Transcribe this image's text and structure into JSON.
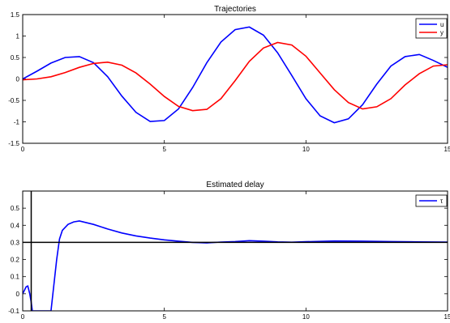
{
  "chart_data": [
    {
      "type": "line",
      "title": "Trajectories",
      "xlabel": "",
      "ylabel": "",
      "xlim": [
        0,
        15
      ],
      "ylim": [
        -1.5,
        1.5
      ],
      "xticks": [
        0,
        5,
        10,
        15
      ],
      "xtick_labels": [
        "0",
        "5",
        "10",
        "15"
      ],
      "yticks": [
        -1.5,
        -1,
        -0.5,
        0,
        0.5,
        1,
        1.5
      ],
      "ytick_labels": [
        "-1.5",
        "-1",
        "-0.5",
        "0",
        "0.5",
        "1",
        "1.5"
      ],
      "grid": false,
      "legend_position": "top-right",
      "series": [
        {
          "name": "u",
          "color": "#0000ff",
          "x": [
            0,
            0.5,
            1,
            1.5,
            2,
            2.5,
            3,
            3.5,
            4,
            4.5,
            5,
            5.5,
            6,
            6.5,
            7,
            7.5,
            8,
            8.5,
            9,
            9.5,
            10,
            10.5,
            11,
            11.5,
            12,
            12.5,
            13,
            13.5,
            14,
            14.5,
            15
          ],
          "y": [
            0.0,
            0.18,
            0.37,
            0.5,
            0.52,
            0.38,
            0.05,
            -0.4,
            -0.78,
            -0.99,
            -0.97,
            -0.7,
            -0.2,
            0.38,
            0.86,
            1.15,
            1.21,
            1.02,
            0.61,
            0.08,
            -0.46,
            -0.86,
            -1.02,
            -0.93,
            -0.6,
            -0.12,
            0.3,
            0.52,
            0.57,
            0.43,
            0.27
          ]
        },
        {
          "name": "y",
          "color": "#ff0000",
          "x": [
            0,
            0.5,
            1,
            1.5,
            2,
            2.5,
            3,
            3.5,
            4,
            4.5,
            5,
            5.5,
            6,
            6.5,
            7,
            7.5,
            8,
            8.5,
            9,
            9.5,
            10,
            10.5,
            11,
            11.5,
            12,
            12.5,
            13,
            13.5,
            14,
            14.5,
            15
          ],
          "y": [
            -0.02,
            0.0,
            0.05,
            0.15,
            0.27,
            0.36,
            0.39,
            0.32,
            0.14,
            -0.12,
            -0.41,
            -0.64,
            -0.74,
            -0.71,
            -0.46,
            -0.04,
            0.41,
            0.72,
            0.85,
            0.79,
            0.53,
            0.14,
            -0.25,
            -0.55,
            -0.7,
            -0.65,
            -0.46,
            -0.14,
            0.12,
            0.3,
            0.33
          ]
        }
      ]
    },
    {
      "type": "line",
      "title": "Estimated delay",
      "xlabel": "",
      "ylabel": "",
      "xlim": [
        0,
        15
      ],
      "ylim": [
        -0.1,
        0.6
      ],
      "xticks": [
        0,
        5,
        10,
        15
      ],
      "xtick_labels": [
        "0",
        "5",
        "10",
        "15"
      ],
      "yticks": [
        -0.1,
        0,
        0.1,
        0.2,
        0.3,
        0.4,
        0.5
      ],
      "ytick_labels": [
        "-0.1",
        "0",
        "0.1",
        "0.2",
        "0.3",
        "0.4",
        "0.5"
      ],
      "grid": false,
      "legend_position": "top-right",
      "series": [
        {
          "name": "τ",
          "color": "#0000ff",
          "x": [
            0,
            0.12,
            0.18,
            0.25,
            0.3,
            0.34,
            1.0,
            1.1,
            1.2,
            1.3,
            1.4,
            1.6,
            1.8,
            2.0,
            2.5,
            3.0,
            3.5,
            4.0,
            4.5,
            5.0,
            5.5,
            6.0,
            6.5,
            7.0,
            7.5,
            8.0,
            8.5,
            9.0,
            9.5,
            10.0,
            11.0,
            12.0,
            13.0,
            14.0,
            15.0
          ],
          "y": [
            0.0,
            0.04,
            0.045,
            0.0,
            -0.05,
            -0.1,
            -0.1,
            0.05,
            0.2,
            0.32,
            0.37,
            0.405,
            0.42,
            0.425,
            0.405,
            0.378,
            0.355,
            0.338,
            0.325,
            0.315,
            0.307,
            0.3,
            0.297,
            0.302,
            0.305,
            0.31,
            0.307,
            0.303,
            0.301,
            0.304,
            0.308,
            0.307,
            0.305,
            0.303,
            0.302
          ]
        },
        {
          "name": "",
          "color": "#000000",
          "reference": true,
          "x": [
            0,
            15
          ],
          "y": [
            0.3,
            0.3
          ]
        },
        {
          "name": "",
          "color": "#000000",
          "reference": true,
          "x": [
            0.3,
            0.3
          ],
          "y": [
            -0.1,
            0.6
          ]
        }
      ]
    }
  ]
}
